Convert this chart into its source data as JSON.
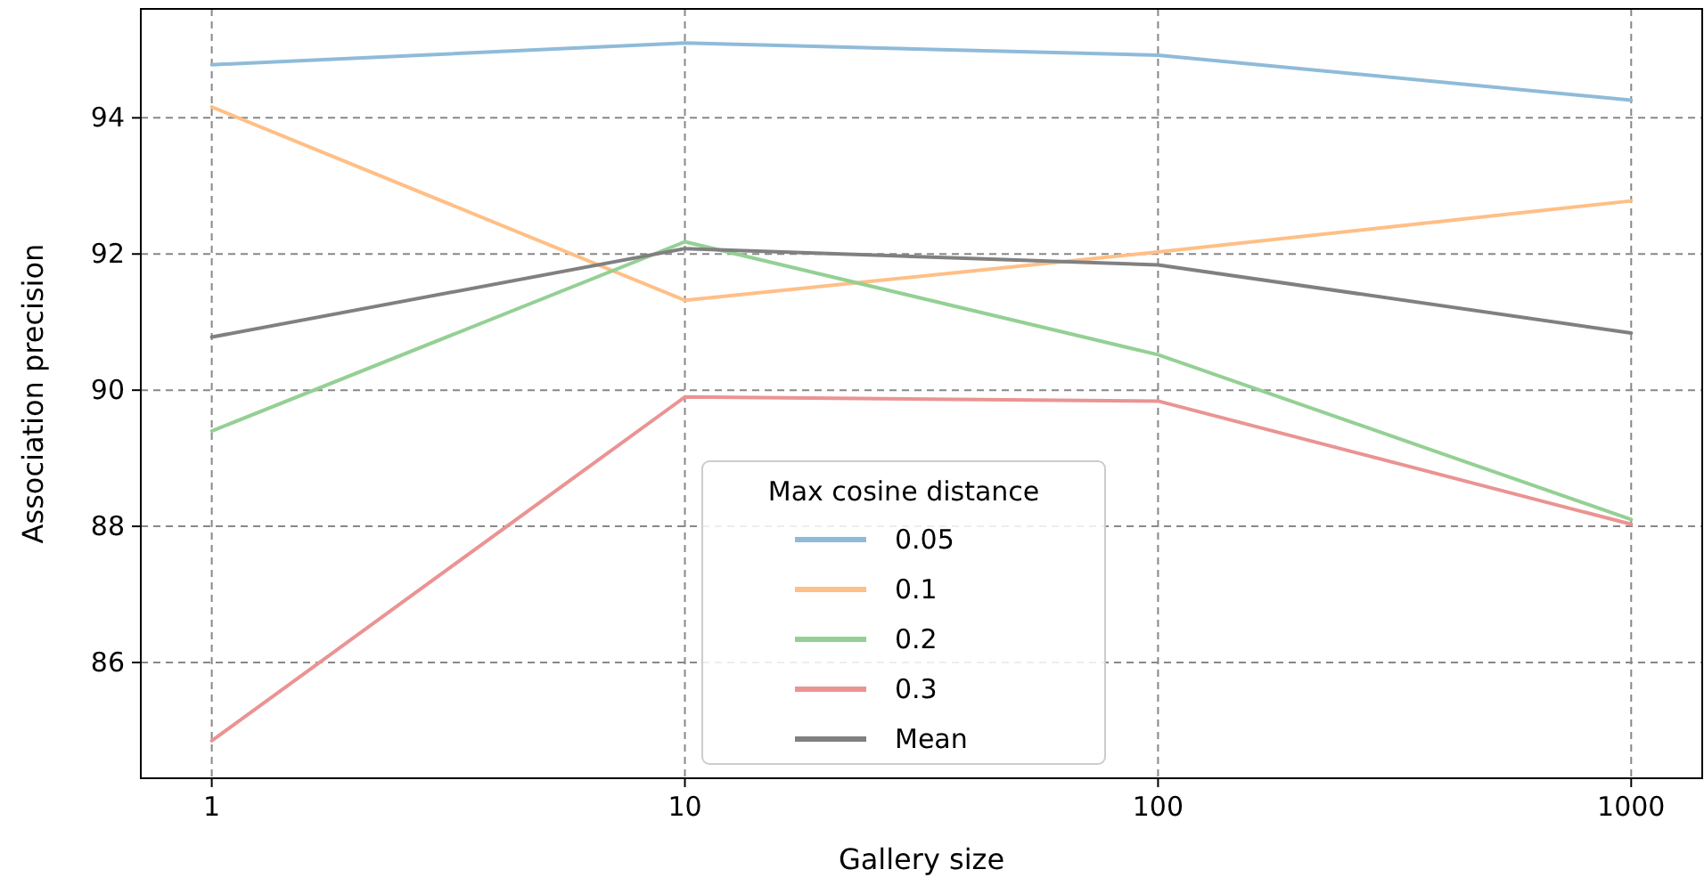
{
  "chart_data": {
    "type": "line",
    "xlabel": "Gallery size",
    "ylabel": "Association precision",
    "legend_title": "Max cosine distance",
    "x": [
      1,
      10,
      100,
      1000
    ],
    "log": "x",
    "xlim": [
      0.708,
      1413
    ],
    "xticks": [
      1,
      10,
      100,
      1000
    ],
    "ylim": [
      84.3,
      95.6
    ],
    "yticks": [
      86,
      88,
      90,
      92,
      94
    ],
    "grid": true,
    "legend": "bottom",
    "line_style": "solid",
    "marker": "none",
    "series": [
      {
        "name": "0.05",
        "color": "#8fbbd9",
        "values": [
          94.78,
          95.1,
          94.92,
          94.26
        ]
      },
      {
        "name": "0.1",
        "color": "#ffbf86",
        "values": [
          94.16,
          91.32,
          92.03,
          92.78
        ]
      },
      {
        "name": "0.2",
        "color": "#94d094",
        "values": [
          89.4,
          92.18,
          90.52,
          88.1
        ]
      },
      {
        "name": "0.3",
        "color": "#eb9393",
        "values": [
          84.85,
          89.9,
          89.84,
          88.03
        ]
      },
      {
        "name": "Mean",
        "color": "#808080",
        "values": [
          90.78,
          92.08,
          91.84,
          90.84
        ]
      }
    ]
  }
}
